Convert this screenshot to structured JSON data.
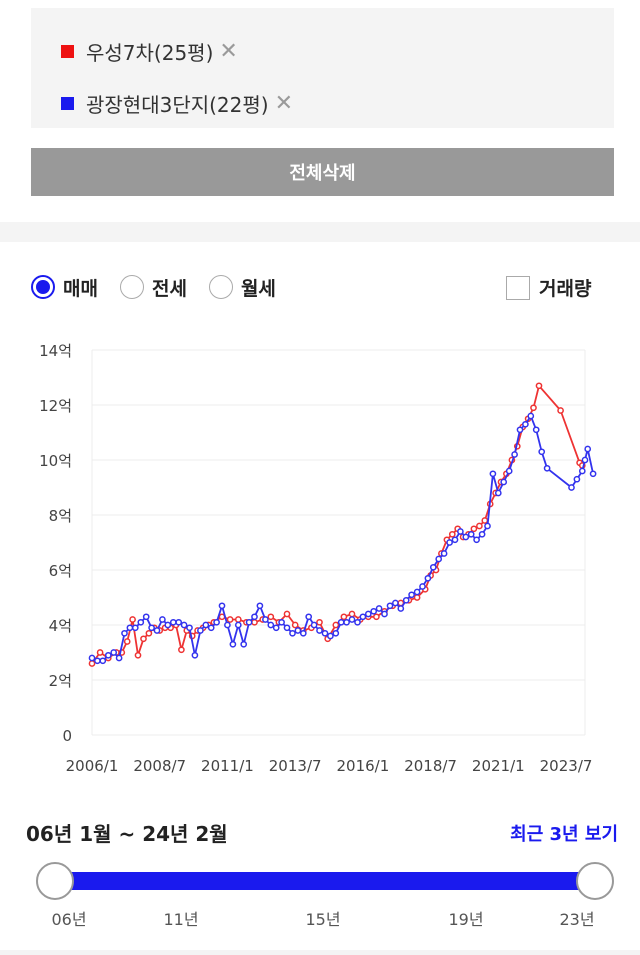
{
  "legend": [
    {
      "label": "우성7차(25평)",
      "color": "#ee1111",
      "remove": "✕"
    },
    {
      "label": "광장현대3단지(22평)",
      "color": "#1a1aee",
      "remove": "✕"
    }
  ],
  "delete_all_label": "전체삭제",
  "trade_types": [
    {
      "label": "매매",
      "selected": true
    },
    {
      "label": "전세",
      "selected": false
    },
    {
      "label": "월세",
      "selected": false
    }
  ],
  "volume_label": "거래량",
  "chart_data": {
    "type": "line",
    "x_ticks": [
      "2006/1",
      "2008/7",
      "2011/1",
      "2013/7",
      "2016/1",
      "2018/7",
      "2021/1",
      "2023/7"
    ],
    "y_ticks": [
      "0",
      "2억",
      "4억",
      "6억",
      "8억",
      "10억",
      "12억",
      "14억"
    ],
    "ylim": [
      0,
      14
    ],
    "xlim": [
      2006.0,
      2024.2
    ],
    "grid": true,
    "series": [
      {
        "name": "우성7차(25평)",
        "color": "#ee3333",
        "points": [
          [
            2006.0,
            2.6
          ],
          [
            2006.3,
            3.0
          ],
          [
            2006.6,
            2.8
          ],
          [
            2006.9,
            3.0
          ],
          [
            2007.1,
            3.0
          ],
          [
            2007.3,
            3.4
          ],
          [
            2007.5,
            4.2
          ],
          [
            2007.7,
            2.9
          ],
          [
            2007.9,
            3.5
          ],
          [
            2008.1,
            3.7
          ],
          [
            2008.3,
            3.9
          ],
          [
            2008.5,
            3.8
          ],
          [
            2008.7,
            3.9
          ],
          [
            2008.9,
            3.9
          ],
          [
            2009.1,
            4.0
          ],
          [
            2009.3,
            3.1
          ],
          [
            2009.5,
            3.8
          ],
          [
            2009.7,
            3.6
          ],
          [
            2009.9,
            3.8
          ],
          [
            2010.1,
            3.9
          ],
          [
            2010.3,
            4.0
          ],
          [
            2010.5,
            4.1
          ],
          [
            2010.8,
            4.3
          ],
          [
            2011.1,
            4.2
          ],
          [
            2011.4,
            4.2
          ],
          [
            2011.7,
            4.1
          ],
          [
            2012.0,
            4.1
          ],
          [
            2012.3,
            4.2
          ],
          [
            2012.6,
            4.3
          ],
          [
            2012.9,
            4.1
          ],
          [
            2013.2,
            4.4
          ],
          [
            2013.5,
            4.0
          ],
          [
            2013.8,
            3.8
          ],
          [
            2014.1,
            3.9
          ],
          [
            2014.4,
            4.1
          ],
          [
            2014.7,
            3.5
          ],
          [
            2015.0,
            4.0
          ],
          [
            2015.3,
            4.3
          ],
          [
            2015.6,
            4.4
          ],
          [
            2015.9,
            4.2
          ],
          [
            2016.2,
            4.3
          ],
          [
            2016.5,
            4.3
          ],
          [
            2016.8,
            4.5
          ],
          [
            2017.1,
            4.7
          ],
          [
            2017.4,
            4.8
          ],
          [
            2017.7,
            4.9
          ],
          [
            2018.0,
            5.0
          ],
          [
            2018.3,
            5.3
          ],
          [
            2018.5,
            5.8
          ],
          [
            2018.7,
            6.0
          ],
          [
            2018.9,
            6.6
          ],
          [
            2019.1,
            7.1
          ],
          [
            2019.3,
            7.3
          ],
          [
            2019.5,
            7.5
          ],
          [
            2019.7,
            7.2
          ],
          [
            2019.9,
            7.3
          ],
          [
            2020.1,
            7.5
          ],
          [
            2020.3,
            7.6
          ],
          [
            2020.5,
            7.8
          ],
          [
            2020.7,
            8.4
          ],
          [
            2020.9,
            8.8
          ],
          [
            2021.1,
            9.2
          ],
          [
            2021.3,
            9.5
          ],
          [
            2021.5,
            10.0
          ],
          [
            2021.7,
            10.5
          ],
          [
            2021.9,
            11.2
          ],
          [
            2022.1,
            11.5
          ],
          [
            2022.3,
            11.9
          ],
          [
            2022.5,
            12.7
          ],
          [
            2023.3,
            11.8
          ],
          [
            2024.0,
            9.9
          ],
          [
            2024.1,
            9.8
          ]
        ]
      },
      {
        "name": "광장현대3단지(22평)",
        "color": "#3333ee",
        "points": [
          [
            2006.0,
            2.8
          ],
          [
            2006.2,
            2.7
          ],
          [
            2006.4,
            2.7
          ],
          [
            2006.6,
            2.9
          ],
          [
            2006.8,
            3.0
          ],
          [
            2007.0,
            2.8
          ],
          [
            2007.2,
            3.7
          ],
          [
            2007.4,
            3.9
          ],
          [
            2007.6,
            3.9
          ],
          [
            2007.8,
            4.1
          ],
          [
            2008.0,
            4.3
          ],
          [
            2008.2,
            3.9
          ],
          [
            2008.4,
            3.8
          ],
          [
            2008.6,
            4.2
          ],
          [
            2008.8,
            4.0
          ],
          [
            2009.0,
            4.1
          ],
          [
            2009.2,
            4.1
          ],
          [
            2009.4,
            4.0
          ],
          [
            2009.6,
            3.9
          ],
          [
            2009.8,
            2.9
          ],
          [
            2010.0,
            3.8
          ],
          [
            2010.2,
            4.0
          ],
          [
            2010.4,
            3.9
          ],
          [
            2010.6,
            4.1
          ],
          [
            2010.8,
            4.7
          ],
          [
            2011.0,
            4.0
          ],
          [
            2011.2,
            3.3
          ],
          [
            2011.4,
            4.0
          ],
          [
            2011.6,
            3.3
          ],
          [
            2011.8,
            4.1
          ],
          [
            2012.0,
            4.3
          ],
          [
            2012.2,
            4.7
          ],
          [
            2012.4,
            4.2
          ],
          [
            2012.6,
            4.0
          ],
          [
            2012.8,
            3.9
          ],
          [
            2013.0,
            4.1
          ],
          [
            2013.2,
            3.9
          ],
          [
            2013.4,
            3.7
          ],
          [
            2013.6,
            3.8
          ],
          [
            2013.8,
            3.7
          ],
          [
            2014.0,
            4.3
          ],
          [
            2014.2,
            4.0
          ],
          [
            2014.4,
            3.8
          ],
          [
            2014.6,
            3.7
          ],
          [
            2014.8,
            3.6
          ],
          [
            2015.0,
            3.7
          ],
          [
            2015.2,
            4.1
          ],
          [
            2015.4,
            4.1
          ],
          [
            2015.6,
            4.2
          ],
          [
            2015.8,
            4.1
          ],
          [
            2016.0,
            4.3
          ],
          [
            2016.2,
            4.4
          ],
          [
            2016.4,
            4.5
          ],
          [
            2016.6,
            4.6
          ],
          [
            2016.8,
            4.4
          ],
          [
            2017.0,
            4.7
          ],
          [
            2017.2,
            4.8
          ],
          [
            2017.4,
            4.6
          ],
          [
            2017.6,
            4.9
          ],
          [
            2017.8,
            5.1
          ],
          [
            2018.0,
            5.2
          ],
          [
            2018.2,
            5.4
          ],
          [
            2018.4,
            5.7
          ],
          [
            2018.6,
            6.1
          ],
          [
            2018.8,
            6.4
          ],
          [
            2019.0,
            6.6
          ],
          [
            2019.2,
            7.0
          ],
          [
            2019.4,
            7.1
          ],
          [
            2019.6,
            7.4
          ],
          [
            2019.8,
            7.2
          ],
          [
            2020.0,
            7.3
          ],
          [
            2020.2,
            7.1
          ],
          [
            2020.4,
            7.3
          ],
          [
            2020.6,
            7.6
          ],
          [
            2020.8,
            9.5
          ],
          [
            2021.0,
            8.8
          ],
          [
            2021.2,
            9.2
          ],
          [
            2021.4,
            9.6
          ],
          [
            2021.6,
            10.2
          ],
          [
            2021.8,
            11.1
          ],
          [
            2022.0,
            11.3
          ],
          [
            2022.2,
            11.6
          ],
          [
            2022.4,
            11.1
          ],
          [
            2022.6,
            10.3
          ],
          [
            2022.8,
            9.7
          ],
          [
            2023.7,
            9.0
          ],
          [
            2023.9,
            9.3
          ],
          [
            2024.1,
            9.6
          ],
          [
            2024.2,
            10.0
          ],
          [
            2024.3,
            10.4
          ],
          [
            2024.5,
            9.5
          ]
        ]
      }
    ]
  },
  "range_text": "06년 1월 ~ 24년 2월",
  "recent_link": "최근 3년 보기",
  "slider_labels": [
    "06년",
    "11년",
    "15년",
    "19년",
    "23년"
  ]
}
